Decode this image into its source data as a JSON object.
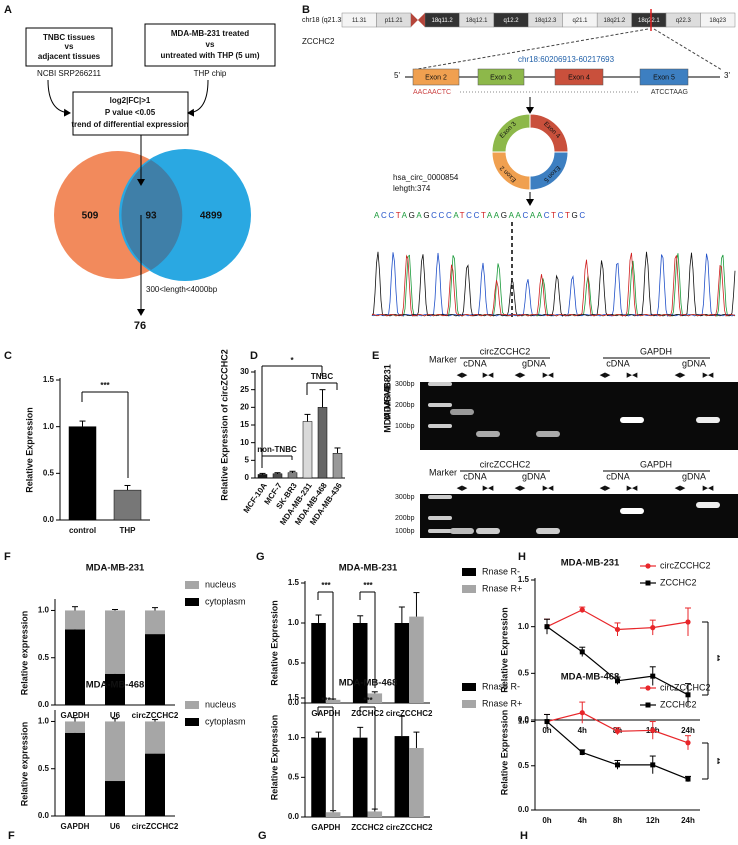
{
  "panel_labels": [
    "A",
    "B",
    "C",
    "D",
    "E",
    "F",
    "G",
    "H",
    "F",
    "G",
    "H"
  ],
  "diagram_a": {
    "left_box": [
      "TNBC tissues",
      "vs",
      "adjacent tissues"
    ],
    "left_source": "NCBI SRP266211",
    "right_box": [
      "MDA-MB-231 treated",
      "vs",
      "untreated with THP (5 um)"
    ],
    "right_source": "THP chip",
    "filter_box": [
      "log2|FC|>1",
      "P value <0.05",
      "trend of differential expression"
    ],
    "venn": [
      509,
      93,
      4899
    ],
    "length_filter": "300<length<4000bp",
    "result": 76
  },
  "panel_b": {
    "chromosome": "chr18 (q21.33)",
    "bands": [
      "11.31",
      "p11.21",
      "18q11.2",
      "18q12.1",
      "q12.2",
      "18q12.3",
      "q21.1",
      "18q21.2",
      "18q22.1",
      "q22.3",
      "18q23"
    ],
    "gene": "ZCCHC2",
    "locus": "chr18:60206913-60217693",
    "five_prime": "5'",
    "three_prime": "3'",
    "exons": [
      "Exon 2",
      "Exon 3",
      "Exon 4",
      "Exon 5"
    ],
    "seq_left": "AACAACTC",
    "seq_right": "ATCCTAAG",
    "circ_id": "hsa_circ_0000854",
    "circ_length": "lehgth:374",
    "sequence": "ACCTAGAGCCCATCCTAAGAACAACTCTGC"
  },
  "panel_e": {
    "marker": "Marker",
    "groups": [
      "circZCCHC2",
      "GAPDH"
    ],
    "templates": [
      "cDNA",
      "gDNA"
    ],
    "primers": [
      "◀▶",
      "▶◀"
    ],
    "sizes": [
      "300bp",
      "200bp",
      "100bp"
    ],
    "cells": [
      "MDA-MB-231",
      "MDA-MB-468"
    ]
  },
  "chart_data": [
    {
      "type": "bar",
      "ylabel": "Relative Expression",
      "categories": [
        "control",
        "THP"
      ],
      "series": [
        {
          "colors": [
            "#000000",
            "#777777"
          ],
          "values": [
            1.0,
            0.32
          ],
          "errors": [
            0.06,
            0.05
          ]
        }
      ],
      "ylim": [
        0,
        1.5
      ],
      "yticks": [
        {
          "value": 0,
          "label": "0.0"
        },
        {
          "value": 0.5,
          "label": "0.5"
        },
        {
          "value": 1,
          "label": "1.0"
        },
        {
          "value": 1.5,
          "label": "1.5"
        }
      ],
      "annotations": [
        "***"
      ]
    },
    {
      "type": "bar",
      "ylabel": "Relative Expression of circZCCHC2",
      "categories": [
        "MCF-10A",
        "MCF-7",
        "SK-BR3",
        "MDA-MB-231",
        "MDA-MB-468",
        "MDA-MB-436"
      ],
      "series": [
        {
          "colors": [
            "#1a1a1a",
            "#4d4d4d",
            "#808080",
            "#d9d9d9",
            "#666666",
            "#999999"
          ],
          "values": [
            1,
            1.2,
            1.5,
            16,
            20,
            7
          ],
          "errors": [
            0.3,
            0.3,
            0.4,
            2,
            5,
            1.5
          ]
        }
      ],
      "ylim": [
        0,
        30
      ],
      "yticks": [
        0,
        5,
        10,
        15,
        20,
        25,
        30
      ],
      "annotations": [
        "non-TNBC",
        "TNBC",
        "*"
      ]
    },
    {
      "type": "stacked_bar",
      "title": "MDA-MB-231",
      "ylabel": "Relative expression",
      "categories": [
        "GAPDH",
        "U6",
        "circZCCHC2"
      ],
      "series": [
        {
          "name": "nucleus",
          "color": "#a6a6a6",
          "values": [
            0.2,
            0.67,
            0.25
          ],
          "errors": [
            0.04,
            0.01,
            0.03
          ]
        },
        {
          "name": "cytoplasm",
          "color": "#000000",
          "values": [
            0.8,
            0.33,
            0.75
          ],
          "errors": [
            0.03,
            0.01,
            0.02
          ]
        }
      ],
      "ylim": [
        0,
        1.1
      ],
      "yticks": [
        {
          "value": 0,
          "label": "0.0"
        },
        {
          "value": 0.5,
          "label": "0.5"
        },
        {
          "value": 1,
          "label": "1.0"
        }
      ]
    },
    {
      "type": "stacked_bar",
      "title": "MDA-MB-468",
      "ylabel": "Relative  expression",
      "categories": [
        "GAPDH",
        "U6",
        "circZCCHC2"
      ],
      "series": [
        {
          "name": "nucleus",
          "color": "#a6a6a6",
          "values": [
            0.12,
            0.63,
            0.34
          ],
          "errors": [
            0.04,
            0.03,
            0.02
          ]
        },
        {
          "name": "cytoplasm",
          "color": "#000000",
          "values": [
            0.88,
            0.37,
            0.66
          ],
          "errors": [
            0.03,
            0.03,
            0.02
          ]
        }
      ],
      "ylim": [
        0,
        1.1
      ],
      "yticks": [
        {
          "value": 0,
          "label": "0.0"
        },
        {
          "value": 0.5,
          "label": "0.5"
        },
        {
          "value": 1,
          "label": "1.0"
        }
      ]
    },
    {
      "type": "grouped_bar",
      "title": "MDA-MB-231",
      "ylabel": "Relative Expression",
      "categories": [
        "GAPDH",
        "ZCCHC2",
        "circZCCHC2"
      ],
      "series": [
        {
          "name": "Rnase R-",
          "color": "#000000",
          "values": [
            1.0,
            1.0,
            1.0
          ],
          "errors": [
            0.1,
            0.09,
            0.2
          ]
        },
        {
          "name": "Rnase R+",
          "color": "#a6a6a6",
          "values": [
            0.04,
            0.12,
            1.08
          ],
          "errors": [
            0.01,
            0.02,
            0.3
          ]
        }
      ],
      "ylim": [
        0,
        1.5
      ],
      "yticks": [
        {
          "value": 0,
          "label": "0.0"
        },
        {
          "value": 0.5,
          "label": "0.5"
        },
        {
          "value": 1,
          "label": "1.0"
        },
        {
          "value": 1.5,
          "label": "1.5"
        }
      ],
      "annotations": [
        "***",
        "***"
      ]
    },
    {
      "type": "grouped_bar",
      "title": "MDA-MB-468",
      "ylabel": "Relative Expression",
      "categories": [
        "GAPDH",
        "ZCCHC2",
        "circZCCHC2"
      ],
      "series": [
        {
          "name": "Rnase R-",
          "color": "#000000",
          "values": [
            1.0,
            1.0,
            1.02
          ],
          "errors": [
            0.07,
            0.13,
            0.25
          ]
        },
        {
          "name": "Rnase R+",
          "color": "#a6a6a6",
          "values": [
            0.06,
            0.07,
            0.87
          ],
          "errors": [
            0.02,
            0.03,
            0.2
          ]
        }
      ],
      "ylim": [
        0,
        1.5
      ],
      "yticks": [
        {
          "value": 0,
          "label": "0.0"
        },
        {
          "value": 0.5,
          "label": "0.5"
        },
        {
          "value": 1,
          "label": "1.0"
        },
        {
          "value": 1.5,
          "label": "1.5"
        }
      ],
      "annotations": [
        "***",
        "***"
      ]
    },
    {
      "type": "line",
      "title": "MDA-MB-231",
      "ylabel": "Relative Expression",
      "categories": [
        "0h",
        "4h",
        "8h",
        "12h",
        "24h"
      ],
      "series": [
        {
          "name": "circZCCHC2",
          "color": "#e8262a",
          "values": [
            1.0,
            1.18,
            0.97,
            0.99,
            1.05
          ],
          "errors": [
            0.08,
            0.03,
            0.07,
            0.08,
            0.15
          ]
        },
        {
          "name": "ZCCHC2",
          "color": "#000000",
          "values": [
            1.0,
            0.73,
            0.42,
            0.47,
            0.27
          ],
          "errors": [
            0.08,
            0.05,
            0.04,
            0.1,
            0.12
          ]
        }
      ],
      "ylim": [
        0,
        1.5
      ],
      "yticks": [
        {
          "value": 0,
          "label": "0.0"
        },
        {
          "value": 0.5,
          "label": "0.5"
        },
        {
          "value": 1,
          "label": "1.0"
        },
        {
          "value": 1.5,
          "label": "1.5"
        }
      ],
      "annotations": [
        "**"
      ]
    },
    {
      "type": "line",
      "title": "MDA-MB-468",
      "ylabel": "Relative Expression",
      "categories": [
        "0h",
        "4h",
        "8h",
        "12h",
        "24h"
      ],
      "series": [
        {
          "name": "circZCCHC2",
          "color": "#e8262a",
          "values": [
            1.0,
            1.1,
            0.89,
            0.9,
            0.76
          ],
          "errors": [
            0.08,
            0.12,
            0.04,
            0.1,
            0.08
          ]
        },
        {
          "name": "ZCCHC2",
          "color": "#000000",
          "values": [
            1.0,
            0.65,
            0.51,
            0.51,
            0.35
          ],
          "errors": [
            0.08,
            0.03,
            0.05,
            0.1,
            0.03
          ]
        }
      ],
      "ylim": [
        0,
        1.3
      ],
      "yticks": [
        {
          "value": 0,
          "label": "0.0"
        },
        {
          "value": 0.5,
          "label": "0.5"
        },
        {
          "value": 1,
          "label": "1.0"
        }
      ],
      "annotations": [
        "**"
      ]
    }
  ]
}
